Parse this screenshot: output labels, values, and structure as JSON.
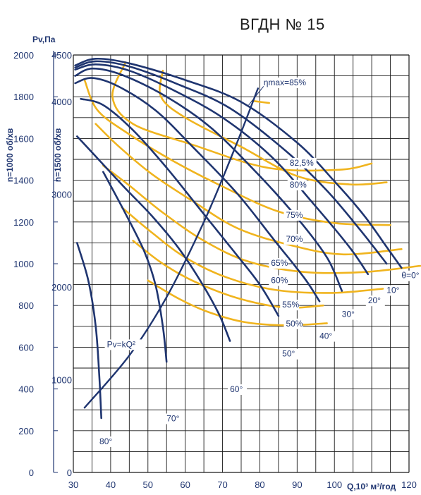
{
  "title": "ВГДН № 15",
  "chart_data": {
    "type": "line",
    "title": "ВГДН № 15",
    "xlabel": "Q,10³ м³/год",
    "x_ticks": [
      30,
      40,
      50,
      60,
      70,
      80,
      90,
      100,
      120
    ],
    "xlim": [
      30,
      120
    ],
    "left_axis": {
      "label": "Pv,Па",
      "sublabel": "n=1000 об/хв",
      "ticks": [
        "0",
        "200",
        "400",
        "600",
        "800",
        "1000",
        "1200",
        "1400",
        "1600",
        "1800",
        "2000"
      ],
      "ylim": [
        0,
        2000
      ]
    },
    "right_axis": {
      "label": "n=1500 об/хв",
      "ticks": [
        "0",
        "1000",
        "2000",
        "3000",
        "4000",
        "4500"
      ],
      "ylim": [
        0,
        4500
      ]
    },
    "colors": {
      "pressure": "#1f3570",
      "efficiency": "#f0b41e",
      "grid": "#1a1a1a"
    },
    "pressure_series": [
      {
        "name": "θ=0°",
        "points": [
          [
            30.5,
            1950
          ],
          [
            36,
            1982
          ],
          [
            45,
            1960
          ],
          [
            60,
            1880
          ],
          [
            75,
            1775
          ],
          [
            90,
            1580
          ],
          [
            100,
            1395
          ],
          [
            108,
            1230
          ],
          [
            114,
            1080
          ],
          [
            118,
            980
          ]
        ]
      },
      {
        "name": "10°",
        "points": [
          [
            30.5,
            1940
          ],
          [
            36,
            1970
          ],
          [
            45,
            1945
          ],
          [
            58,
            1860
          ],
          [
            72,
            1745
          ],
          [
            87,
            1540
          ],
          [
            98,
            1350
          ],
          [
            107,
            1160
          ],
          [
            114,
            1000
          ]
        ]
      },
      {
        "name": "20°",
        "points": [
          [
            30.5,
            1930
          ],
          [
            36,
            1955
          ],
          [
            45,
            1925
          ],
          [
            57,
            1830
          ],
          [
            70,
            1700
          ],
          [
            83,
            1515
          ],
          [
            94,
            1295
          ],
          [
            104,
            1080
          ],
          [
            109,
            950
          ]
        ]
      },
      {
        "name": "30°",
        "points": [
          [
            30.5,
            1900
          ],
          [
            35,
            1935
          ],
          [
            43,
            1905
          ],
          [
            55,
            1800
          ],
          [
            67,
            1650
          ],
          [
            80,
            1420
          ],
          [
            90,
            1220
          ],
          [
            98,
            1030
          ],
          [
            102,
            870
          ]
        ]
      },
      {
        "name": "40°",
        "points": [
          [
            30.5,
            1865
          ],
          [
            35,
            1890
          ],
          [
            42,
            1850
          ],
          [
            52,
            1735
          ],
          [
            62,
            1560
          ],
          [
            74,
            1335
          ],
          [
            84,
            1110
          ],
          [
            92,
            930
          ],
          [
            96,
            820
          ]
        ]
      },
      {
        "name": "50°",
        "points": [
          [
            32,
            1790
          ],
          [
            38,
            1760
          ],
          [
            46,
            1640
          ],
          [
            55,
            1460
          ],
          [
            64,
            1260
          ],
          [
            73,
            1060
          ],
          [
            80,
            900
          ],
          [
            85,
            750
          ]
        ]
      },
      {
        "name": "60°",
        "points": [
          [
            31,
            1610
          ],
          [
            37,
            1495
          ],
          [
            44,
            1360
          ],
          [
            51,
            1230
          ],
          [
            58,
            1080
          ],
          [
            64,
            920
          ],
          [
            69,
            760
          ],
          [
            72,
            630
          ]
        ]
      },
      {
        "name": "70°",
        "points": [
          [
            38,
            1440
          ],
          [
            44,
            1240
          ],
          [
            49,
            1060
          ],
          [
            52,
            900
          ],
          [
            54,
            700
          ],
          [
            55,
            530
          ]
        ]
      },
      {
        "name": "80°",
        "points": [
          [
            31,
            1100
          ],
          [
            34,
            920
          ],
          [
            36,
            700
          ],
          [
            37,
            450
          ],
          [
            37.5,
            260
          ]
        ]
      }
    ],
    "system_curve": {
      "name": "Pv=kQ²",
      "points": [
        [
          33,
          310
        ],
        [
          45,
          560
        ],
        [
          55,
          840
        ],
        [
          65,
          1200
        ],
        [
          73,
          1540
        ],
        [
          79.5,
          1840
        ]
      ]
    },
    "efficiency_series": [
      {
        "name": "ηmax=85%",
        "points": [
          [
            78,
            1780
          ],
          [
            82.5,
            1770
          ]
        ]
      },
      {
        "name": "82,5%",
        "points": [
          [
            44,
            1965
          ],
          [
            40.5,
            1800
          ],
          [
            46,
            1670
          ],
          [
            62,
            1570
          ],
          [
            82,
            1460
          ],
          [
            101,
            1450
          ],
          [
            110,
            1480
          ]
        ]
      },
      {
        "name": "80%",
        "points": [
          [
            54,
            1925
          ],
          [
            53.5,
            1800
          ],
          [
            60,
            1700
          ],
          [
            75,
            1560
          ],
          [
            90,
            1420
          ],
          [
            104,
            1380
          ],
          [
            114,
            1390
          ]
        ]
      },
      {
        "name": "75%",
        "points": [
          [
            33,
            1880
          ],
          [
            36.5,
            1735
          ],
          [
            45,
            1620
          ],
          [
            57,
            1490
          ],
          [
            70,
            1370
          ],
          [
            85,
            1250
          ],
          [
            100,
            1195
          ],
          [
            115,
            1185
          ]
        ]
      },
      {
        "name": "70%",
        "points": [
          [
            36,
            1670
          ],
          [
            42,
            1565
          ],
          [
            51,
            1430
          ],
          [
            62,
            1300
          ],
          [
            74,
            1170
          ],
          [
            88,
            1090
          ],
          [
            102,
            1045
          ],
          [
            118,
            1070
          ]
        ]
      },
      {
        "name": "65%",
        "points": [
          [
            38,
            1470
          ],
          [
            45,
            1375
          ],
          [
            54,
            1245
          ],
          [
            65,
            1110
          ],
          [
            77,
            1010
          ],
          [
            92,
            960
          ],
          [
            108,
            960
          ],
          [
            123,
            990
          ]
        ]
      },
      {
        "name": "60%",
        "points": [
          [
            43,
            1270
          ],
          [
            51,
            1150
          ],
          [
            60,
            1030
          ],
          [
            71,
            935
          ],
          [
            84,
            875
          ],
          [
            99,
            860
          ],
          [
            113,
            880
          ]
        ]
      },
      {
        "name": "55%",
        "points": [
          [
            46,
            1110
          ],
          [
            54,
            1000
          ],
          [
            63,
            910
          ],
          [
            75,
            830
          ],
          [
            87,
            790
          ],
          [
            97,
            800
          ]
        ]
      },
      {
        "name": "50%",
        "points": [
          [
            50,
            920
          ],
          [
            58,
            835
          ],
          [
            66,
            770
          ],
          [
            76,
            720
          ],
          [
            87,
            705
          ],
          [
            98,
            715
          ]
        ]
      }
    ],
    "efficiency_labels": [
      {
        "text": "ηmax=85%",
        "at": [
          81,
          1855
        ]
      },
      {
        "text": "82,5%",
        "at": [
          88,
          1470
        ]
      },
      {
        "text": "80%",
        "at": [
          88,
          1365
        ]
      },
      {
        "text": "75%",
        "at": [
          87,
          1220
        ]
      },
      {
        "text": "70%",
        "at": [
          87,
          1105
        ]
      },
      {
        "text": "65%",
        "at": [
          83,
          990
        ]
      },
      {
        "text": "60%",
        "at": [
          83,
          907
        ]
      },
      {
        "text": "55%",
        "at": [
          86,
          790
        ]
      },
      {
        "text": "50%",
        "at": [
          87,
          700
        ]
      }
    ],
    "angle_labels": [
      {
        "text": "θ=0°",
        "at": [
          118,
          930
        ]
      },
      {
        "text": "10°",
        "at": [
          114,
          860
        ]
      },
      {
        "text": "20°",
        "at": [
          109,
          810
        ]
      },
      {
        "text": "30°",
        "at": [
          102,
          745
        ]
      },
      {
        "text": "40°",
        "at": [
          96,
          640
        ]
      },
      {
        "text": "50°",
        "at": [
          86,
          555
        ]
      },
      {
        "text": "60°",
        "at": [
          72,
          385
        ]
      },
      {
        "text": "70°",
        "at": [
          55,
          245
        ]
      },
      {
        "text": "80°",
        "at": [
          37,
          135
        ]
      }
    ],
    "system_label": {
      "text": "Pv=kQ²",
      "at": [
        39,
        600
      ]
    }
  }
}
